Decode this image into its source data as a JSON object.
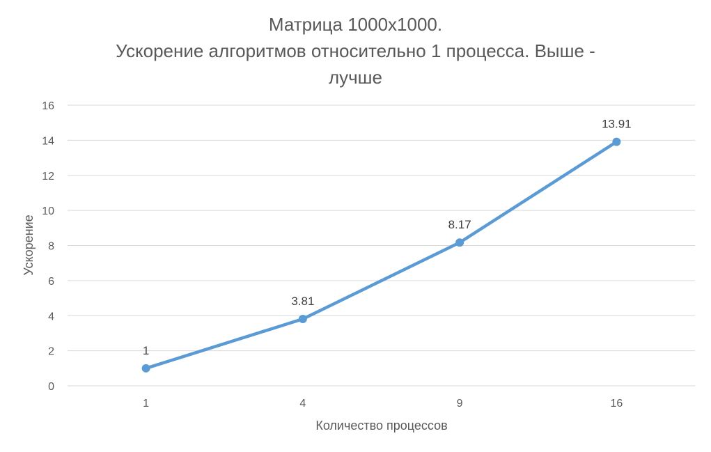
{
  "chart_data": {
    "type": "line",
    "title_lines": [
      "Матрица 1000x1000.",
      "Ускорение алгоритмов относительно 1 процесса. Выше -",
      "лучше"
    ],
    "xlabel": "Количество процессов",
    "ylabel": "Ускорение",
    "categories": [
      "1",
      "4",
      "9",
      "16"
    ],
    "series": [
      {
        "values": [
          1,
          3.81,
          8.17,
          13.91
        ],
        "labels": [
          "1",
          "3.81",
          "8.17",
          "13.91"
        ],
        "color": "#5B9BD5"
      }
    ],
    "yticks": [
      "0",
      "2",
      "4",
      "6",
      "8",
      "10",
      "12",
      "14",
      "16"
    ],
    "ylim": [
      0,
      16
    ],
    "grid": true,
    "gridColor": "#D9D9D9"
  }
}
